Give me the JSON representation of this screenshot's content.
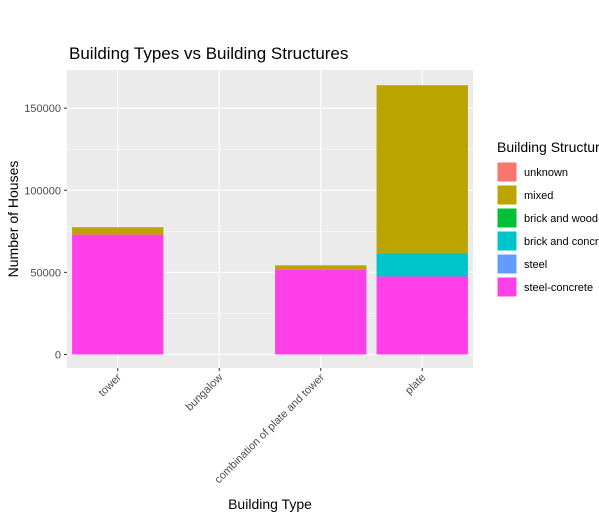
{
  "chart_data": {
    "type": "bar",
    "stacked": true,
    "title": "Building Types vs Building Structures",
    "x_label": "Building Type",
    "y_label": "Number of Houses",
    "legend_title": "Building Structure",
    "legend_position": "right",
    "categories": [
      "tower",
      "bungalow",
      "combination of plate and tower",
      "plate"
    ],
    "series": [
      {
        "name": "unknown",
        "color": "#F8766D",
        "values": [
          0,
          0,
          0,
          0
        ]
      },
      {
        "name": "mixed",
        "color": "#BBA400",
        "values": [
          4500,
          0,
          2500,
          102500
        ]
      },
      {
        "name": "brick and wood",
        "color": "#00C037",
        "values": [
          0,
          0,
          0,
          0
        ]
      },
      {
        "name": "brick and concrete",
        "color": "#00C5C8",
        "values": [
          0,
          0,
          0,
          14000
        ]
      },
      {
        "name": "steel",
        "color": "#619CFF",
        "values": [
          0,
          0,
          0,
          0
        ]
      },
      {
        "name": "steel-concrete",
        "color": "#FF40E8",
        "values": [
          73000,
          0,
          51800,
          47500
        ]
      }
    ],
    "ylim": [
      -8250,
      173250
    ],
    "yticks": [
      0,
      50000,
      100000,
      150000
    ],
    "grid": true
  }
}
